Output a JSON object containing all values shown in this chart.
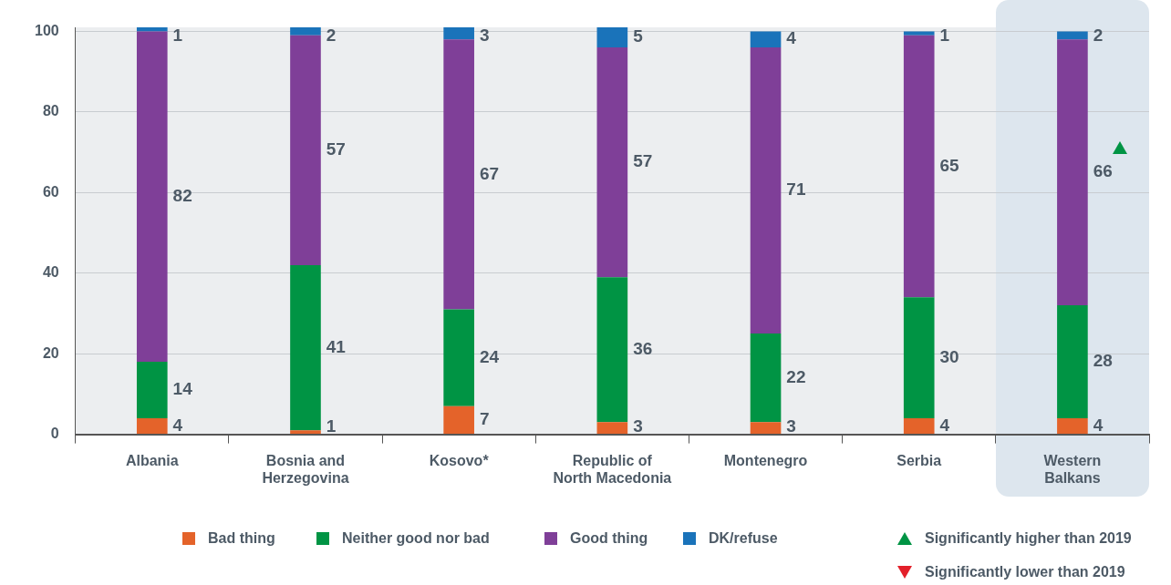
{
  "chart_data": {
    "type": "bar",
    "stacked": true,
    "categories": [
      "Albania",
      "Bosnia and Herzegovina",
      "Kosovo*",
      "Republic of North Macedonia",
      "Montenegro",
      "Serbia",
      "Western Balkans"
    ],
    "series": [
      {
        "name": "Bad thing",
        "color": "#e4632a",
        "values": [
          4,
          1,
          7,
          3,
          3,
          4,
          4
        ]
      },
      {
        "name": "Neither good nor bad",
        "color": "#009444",
        "values": [
          14,
          41,
          24,
          36,
          22,
          30,
          28
        ]
      },
      {
        "name": "Good thing",
        "color": "#7f3f98",
        "values": [
          82,
          57,
          67,
          57,
          71,
          65,
          66
        ]
      },
      {
        "name": "DK/refuse",
        "color": "#1a73ba",
        "values": [
          1,
          2,
          3,
          5,
          4,
          1,
          2
        ]
      }
    ],
    "ylim": [
      0,
      101
    ],
    "yticks": [
      0,
      20,
      40,
      60,
      80,
      100
    ],
    "grid": "y",
    "legend": "bottom",
    "data_labels": true,
    "bands": [
      {
        "axis": "x",
        "from": "Western Balkans",
        "to": "Western Balkans",
        "color": "#dde6ee"
      }
    ],
    "annotations": [
      "Significantly higher than 2019",
      "Significantly lower than 2019"
    ]
  }
}
